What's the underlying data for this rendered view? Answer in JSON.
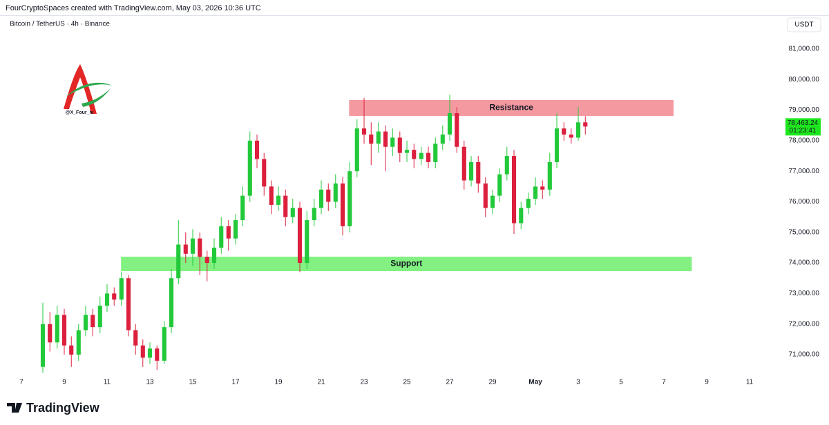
{
  "header": {
    "attribution": "FourCryptoSpaces created with TradingView.com, May 03, 2026 10:36 UTC",
    "symbol": "Bitcoin / TetherUS · 4h · Binance",
    "currency": "USDT",
    "watermark": "@X_Four_iv",
    "brand": "TradingView"
  },
  "chart_data": {
    "type": "candlestick",
    "x": [
      8,
      8.33,
      8.67,
      9,
      9.33,
      9.67,
      10,
      10.33,
      10.67,
      11,
      11.33,
      11.67,
      12,
      12.33,
      12.67,
      13,
      13.33,
      13.67,
      14,
      14.33,
      14.67,
      15,
      15.33,
      15.67,
      16,
      16.33,
      16.67,
      17,
      17.33,
      17.67,
      18,
      18.33,
      18.67,
      19,
      19.33,
      19.67,
      20,
      20.33,
      20.67,
      21,
      21.33,
      21.67,
      22,
      22.33,
      22.67,
      23,
      23.33,
      23.67,
      24,
      24.33,
      24.67,
      25,
      25.33,
      25.67,
      26,
      26.33,
      26.67,
      27,
      27.33,
      27.67,
      28,
      28.33,
      28.67,
      29,
      29.33,
      29.67,
      30,
      30.33,
      30.67,
      31,
      31.33,
      31.67,
      32,
      32.33,
      32.67,
      33,
      33.33
    ],
    "open": [
      70600,
      72000,
      71400,
      72300,
      71300,
      71000,
      71800,
      72300,
      71900,
      72600,
      73000,
      72800,
      73500,
      71800,
      71300,
      70900,
      71200,
      70800,
      71900,
      73500,
      74600,
      74300,
      74800,
      74200,
      74000,
      74500,
      75200,
      74800,
      75400,
      76200,
      78000,
      77400,
      76500,
      75900,
      76200,
      75500,
      75800,
      74000,
      75400,
      75800,
      76400,
      76000,
      76600,
      75200,
      77000,
      78400,
      78200,
      77900,
      78300,
      77800,
      78100,
      77600,
      77700,
      77400,
      77600,
      77300,
      77900,
      78200,
      78900,
      77800,
      76700,
      77300,
      76600,
      75800,
      76200,
      76900,
      77500,
      75300,
      75800,
      76100,
      76500,
      76400,
      77300,
      78400,
      78200,
      78100,
      78600
    ],
    "high": [
      72700,
      72400,
      72600,
      72500,
      71600,
      72000,
      72600,
      72500,
      72900,
      73300,
      73200,
      73700,
      73600,
      72000,
      71500,
      71400,
      71300,
      72100,
      73800,
      75400,
      75000,
      75100,
      75000,
      74400,
      74800,
      75500,
      75400,
      75600,
      76500,
      78300,
      78200,
      77600,
      76700,
      76500,
      76400,
      76100,
      76000,
      75700,
      76100,
      76700,
      76600,
      76900,
      76800,
      77300,
      78700,
      79400,
      78600,
      78600,
      78500,
      78400,
      78300,
      78000,
      77900,
      77800,
      77800,
      78100,
      78500,
      79500,
      79100,
      78000,
      77500,
      77500,
      76800,
      76400,
      77100,
      77800,
      77700,
      76000,
      76300,
      76800,
      76700,
      77600,
      78900,
      78600,
      78400,
      79100,
      78800
    ],
    "low": [
      70400,
      71100,
      71200,
      71000,
      70600,
      70800,
      71600,
      71600,
      71700,
      72400,
      72600,
      72600,
      71600,
      71000,
      70600,
      70700,
      70500,
      70700,
      71700,
      73300,
      74000,
      73900,
      73600,
      73400,
      73800,
      74300,
      74400,
      74600,
      75200,
      76000,
      77100,
      76200,
      75600,
      75700,
      75200,
      75300,
      73700,
      73800,
      75200,
      75600,
      75700,
      75800,
      74900,
      75000,
      76800,
      77900,
      77200,
      77600,
      77000,
      77500,
      77300,
      77300,
      77100,
      77200,
      77100,
      77100,
      77700,
      78000,
      77600,
      76400,
      76500,
      76300,
      75500,
      75600,
      76000,
      76700,
      74950,
      75100,
      75600,
      75900,
      76100,
      76200,
      77100,
      78000,
      77900,
      78000,
      78200
    ],
    "close": [
      72000,
      71400,
      72300,
      71300,
      71000,
      71800,
      72300,
      71900,
      72600,
      73000,
      72800,
      73500,
      71800,
      71300,
      70900,
      71200,
      70800,
      71900,
      73500,
      74600,
      74300,
      74800,
      74200,
      74000,
      74500,
      75200,
      74800,
      75400,
      76200,
      78000,
      77400,
      76500,
      75900,
      76200,
      75500,
      75800,
      74000,
      75400,
      75800,
      76400,
      76000,
      76600,
      75200,
      77000,
      78400,
      78200,
      77900,
      78300,
      77800,
      78100,
      77600,
      77700,
      77400,
      77600,
      77300,
      77900,
      78200,
      78900,
      77800,
      76700,
      77300,
      76600,
      75800,
      76200,
      76900,
      77500,
      75300,
      75800,
      76100,
      76500,
      76400,
      77300,
      78400,
      78200,
      78100,
      78600,
      78463.24
    ],
    "up_color": "#22c93a",
    "down_color": "#dc1f3d",
    "xlim": [
      6,
      42.45
    ],
    "xticks": [
      7,
      9,
      11,
      13,
      15,
      17,
      19,
      21,
      23,
      25,
      27,
      29,
      {
        "value": 31,
        "label": "May"
      },
      {
        "value": 33,
        "label": "3"
      },
      {
        "value": 35,
        "label": "5"
      },
      {
        "value": 37,
        "label": "7"
      },
      {
        "value": 39,
        "label": "9"
      },
      {
        "value": 41,
        "label": "11"
      }
    ],
    "ylim": [
      70413,
      81519
    ],
    "yticks": [
      {
        "value": 71000,
        "label": "71,000.00"
      },
      {
        "value": 72000,
        "label": "72,000.00"
      },
      {
        "value": 73000,
        "label": "73,000.00"
      },
      {
        "value": 74000,
        "label": "74,000.00"
      },
      {
        "value": 75000,
        "label": "75,000.00"
      },
      {
        "value": 76000,
        "label": "76,000.00"
      },
      {
        "value": 77000,
        "label": "77,000.00"
      },
      {
        "value": 78000,
        "label": "78,000.00"
      },
      {
        "value": 79000,
        "label": "79,000.00"
      },
      {
        "value": 80000,
        "label": "80,000.00"
      },
      {
        "value": 81000,
        "label": "81,000.00"
      }
    ],
    "zones": [
      {
        "label": "Resistance",
        "x": [
          22.3,
          37.45
        ],
        "y": [
          78810,
          79330
        ],
        "color": "#f4939c"
      },
      {
        "label": "Support",
        "x": [
          11.65,
          38.3
        ],
        "y": [
          73730,
          74205
        ],
        "color": "#7bf07b"
      }
    ],
    "last_price": {
      "value": 78463.24,
      "label": "78,463.24",
      "countdown": "01:23:41",
      "color": "#1ee61e"
    }
  }
}
